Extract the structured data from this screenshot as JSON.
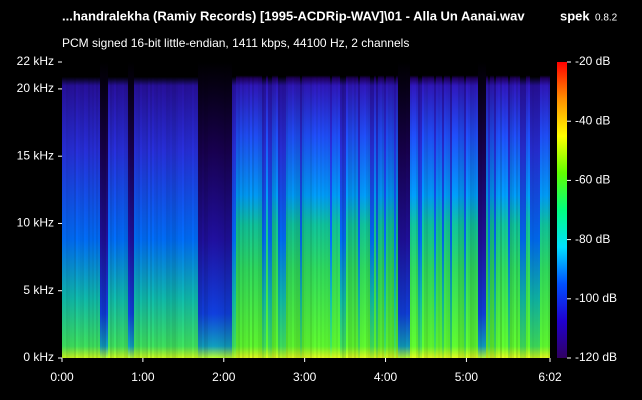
{
  "chart_data": {
    "type": "spectrogram",
    "title": "...handralekha (Ramiy Records) [1995-ACDRip-WAV]\\01 - Alla Un Aanai.wav",
    "app_name": "spek",
    "app_version": "0.8.2",
    "subtitle": "PCM signed 16-bit little-endian, 1411 kbps, 44100 Hz, 2 channels",
    "xlim": [
      0,
      362
    ],
    "xticks": [
      {
        "value": 0,
        "label": "0:00"
      },
      {
        "value": 60,
        "label": "1:00"
      },
      {
        "value": 120,
        "label": "2:00"
      },
      {
        "value": 180,
        "label": "3:00"
      },
      {
        "value": 240,
        "label": "4:00"
      },
      {
        "value": 300,
        "label": "5:00"
      },
      {
        "value": 362,
        "label": "6:02"
      }
    ],
    "ylim": [
      0,
      22
    ],
    "yticks": [
      {
        "value": 0,
        "label": "0 kHz"
      },
      {
        "value": 5,
        "label": "5 kHz"
      },
      {
        "value": 10,
        "label": "10 kHz"
      },
      {
        "value": 15,
        "label": "15 kHz"
      },
      {
        "value": 20,
        "label": "20 kHz"
      },
      {
        "value": 22,
        "label": "22 kHz"
      }
    ],
    "colorbar": {
      "lim": [
        -120,
        -20
      ],
      "ticks": [
        {
          "value": -20,
          "label": "-20 dB"
        },
        {
          "value": -40,
          "label": "-40 dB"
        },
        {
          "value": -60,
          "label": "-60 dB"
        },
        {
          "value": -80,
          "label": "-80 dB"
        },
        {
          "value": -100,
          "label": "-100 dB"
        },
        {
          "value": -120,
          "label": "-120 dB"
        }
      ]
    },
    "colormap": [
      "#ff0000",
      "#ff9000",
      "#ffff00",
      "#60ff00",
      "#00ff80",
      "#00e0ff",
      "#0050ff",
      "#2000d0",
      "#300060"
    ]
  }
}
